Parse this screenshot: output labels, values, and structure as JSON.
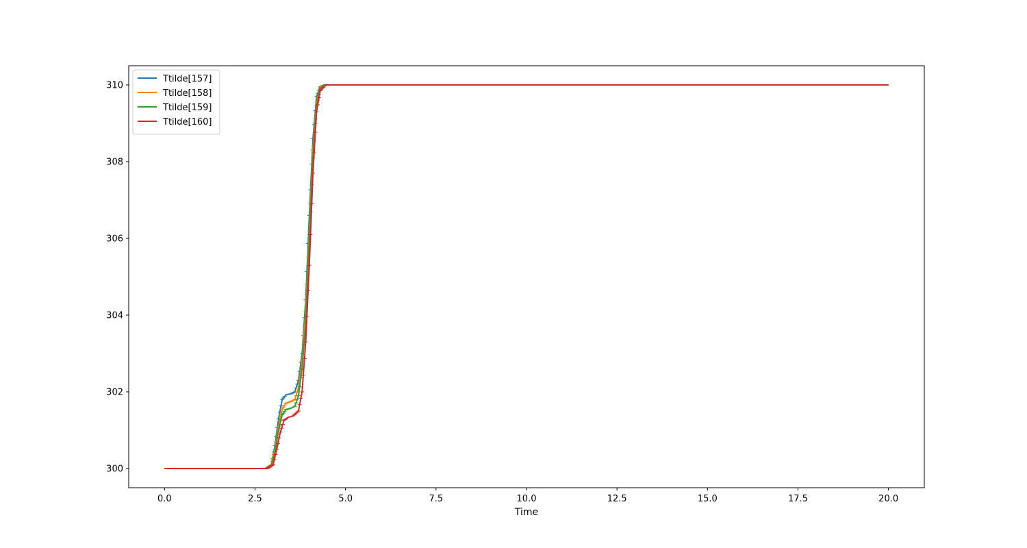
{
  "chart_data": {
    "type": "line",
    "xlabel": "Time",
    "ylabel": "",
    "xlim": [
      -0.99,
      20.99
    ],
    "ylim": [
      299.5,
      310.5
    ],
    "xticks": [
      "0.0",
      "2.5",
      "5.0",
      "7.5",
      "10.0",
      "12.5",
      "15.0",
      "17.5",
      "20.0"
    ],
    "yticks": [
      "300",
      "302",
      "304",
      "306",
      "308",
      "310"
    ],
    "grid": false,
    "legend_position": "top-left",
    "series": [
      {
        "name": "Ttilde[157]",
        "color": "#1f77b4",
        "points": [
          [
            0,
            300
          ],
          [
            2.8,
            300
          ],
          [
            2.95,
            300.1
          ],
          [
            3.05,
            300.6
          ],
          [
            3.15,
            301.3
          ],
          [
            3.25,
            301.8
          ],
          [
            3.35,
            301.92
          ],
          [
            3.5,
            301.95
          ],
          [
            3.6,
            302.0
          ],
          [
            3.7,
            302.3
          ],
          [
            3.8,
            303.0
          ],
          [
            3.9,
            304.4
          ],
          [
            4.0,
            306.6
          ],
          [
            4.1,
            308.6
          ],
          [
            4.2,
            309.7
          ],
          [
            4.3,
            309.95
          ],
          [
            4.4,
            310
          ],
          [
            20,
            310
          ]
        ]
      },
      {
        "name": "Ttilde[158]",
        "color": "#ff7f0e",
        "points": [
          [
            0,
            300
          ],
          [
            2.8,
            300
          ],
          [
            2.95,
            300.1
          ],
          [
            3.05,
            300.5
          ],
          [
            3.15,
            301.1
          ],
          [
            3.25,
            301.55
          ],
          [
            3.35,
            301.7
          ],
          [
            3.5,
            301.75
          ],
          [
            3.6,
            301.8
          ],
          [
            3.7,
            302.1
          ],
          [
            3.8,
            302.8
          ],
          [
            3.9,
            304.1
          ],
          [
            4.0,
            306.2
          ],
          [
            4.1,
            308.3
          ],
          [
            4.2,
            309.55
          ],
          [
            4.3,
            309.93
          ],
          [
            4.4,
            310
          ],
          [
            20,
            310
          ]
        ]
      },
      {
        "name": "Ttilde[159]",
        "color": "#2ca02c",
        "points": [
          [
            0,
            300
          ],
          [
            2.8,
            300
          ],
          [
            2.95,
            300.08
          ],
          [
            3.05,
            300.4
          ],
          [
            3.15,
            301.0
          ],
          [
            3.25,
            301.4
          ],
          [
            3.35,
            301.53
          ],
          [
            3.5,
            301.58
          ],
          [
            3.6,
            301.62
          ],
          [
            3.7,
            301.9
          ],
          [
            3.8,
            302.6
          ],
          [
            3.9,
            303.8
          ],
          [
            4.0,
            306.0
          ],
          [
            4.1,
            308.1
          ],
          [
            4.2,
            309.45
          ],
          [
            4.3,
            309.9
          ],
          [
            4.4,
            310
          ],
          [
            20,
            310
          ]
        ]
      },
      {
        "name": "Ttilde[160]",
        "color": "#d62728",
        "points": [
          [
            0,
            300
          ],
          [
            2.85,
            300
          ],
          [
            3.0,
            300.1
          ],
          [
            3.1,
            300.5
          ],
          [
            3.2,
            300.95
          ],
          [
            3.3,
            301.25
          ],
          [
            3.4,
            301.33
          ],
          [
            3.55,
            301.37
          ],
          [
            3.7,
            301.5
          ],
          [
            3.8,
            302.0
          ],
          [
            3.9,
            303.3
          ],
          [
            4.0,
            305.3
          ],
          [
            4.1,
            307.7
          ],
          [
            4.2,
            309.3
          ],
          [
            4.3,
            309.85
          ],
          [
            4.45,
            310
          ],
          [
            20,
            310
          ]
        ]
      }
    ]
  }
}
